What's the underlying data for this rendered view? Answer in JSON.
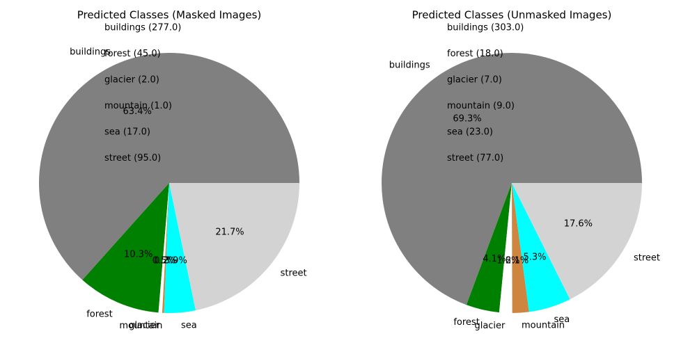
{
  "chart_data": [
    {
      "type": "pie",
      "title": "Predicted Classes (Masked Images)",
      "categories": [
        "buildings",
        "forest",
        "glacier",
        "mountain",
        "sea",
        "street"
      ],
      "values": [
        277,
        45,
        2,
        1,
        17,
        95
      ],
      "colors": [
        "#808080",
        "#008000",
        "#ffffff",
        "#cd853f",
        "#00ffff",
        "#d3d3d3"
      ],
      "pct_labels": [
        "63.4%",
        "10.3%",
        "0.5%",
        "0.2%",
        "3.9%",
        "21.7%"
      ],
      "count_annotations": [
        "buildings (277.0)",
        "forest (45.0)",
        "glacier (2.0)",
        "mountain (1.0)",
        "sea (17.0)",
        "street (95.0)"
      ]
    },
    {
      "type": "pie",
      "title": "Predicted Classes (Unmasked Images)",
      "categories": [
        "buildings",
        "forest",
        "glacier",
        "mountain",
        "sea",
        "street"
      ],
      "values": [
        303,
        18,
        7,
        9,
        23,
        77
      ],
      "colors": [
        "#808080",
        "#008000",
        "#ffffff",
        "#cd853f",
        "#00ffff",
        "#d3d3d3"
      ],
      "pct_labels": [
        "69.3%",
        "4.1%",
        "1.6%",
        "2.1%",
        "5.3%",
        "17.6%"
      ],
      "count_annotations": [
        "buildings (303.0)",
        "forest (18.0)",
        "glacier (7.0)",
        "mountain (9.0)",
        "sea (23.0)",
        "street (77.0)"
      ]
    }
  ]
}
